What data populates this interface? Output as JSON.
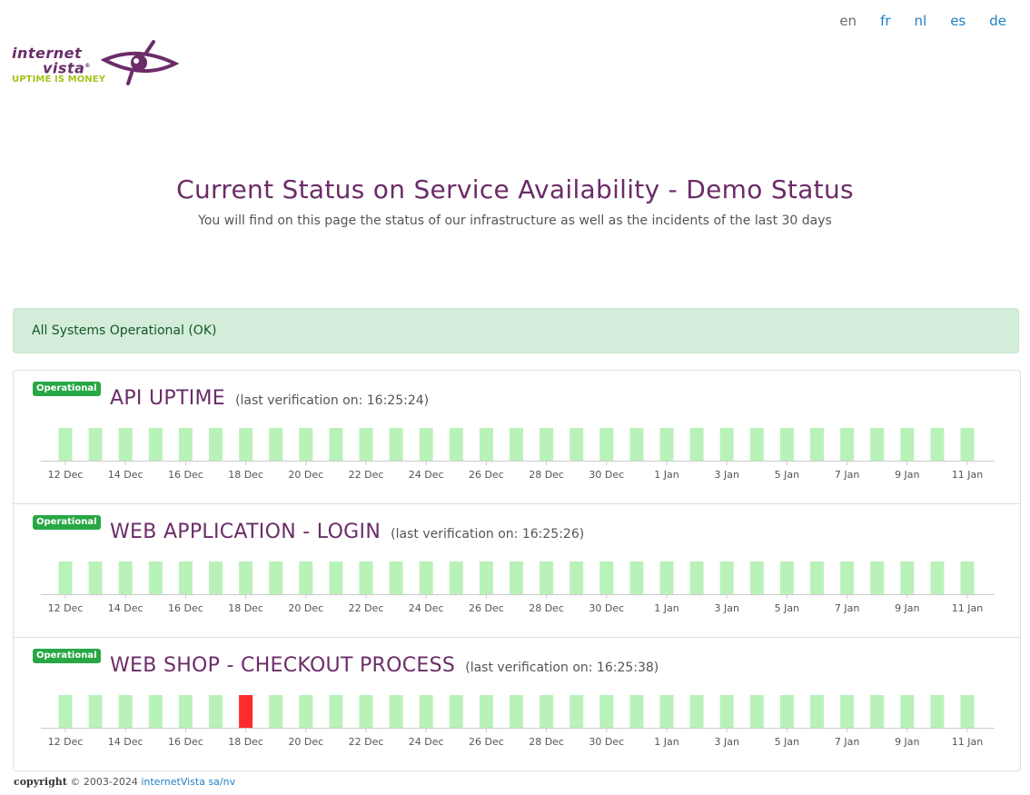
{
  "languages": [
    {
      "code": "en",
      "active": true
    },
    {
      "code": "fr",
      "active": false
    },
    {
      "code": "nl",
      "active": false
    },
    {
      "code": "es",
      "active": false
    },
    {
      "code": "de",
      "active": false
    }
  ],
  "logo": {
    "word_line1": "internet",
    "word_line2": "vista",
    "registered": "®",
    "tagline": "UPTIME IS MONEY"
  },
  "header": {
    "title": "Current Status on Service Availability - Demo Status",
    "subtitle": "You will find on this page the status of our infrastructure as well as the incidents of the last 30 days"
  },
  "alert": {
    "text": "All Systems Operational (OK)"
  },
  "services": [
    {
      "badge": "Operational",
      "name": "API UPTIME",
      "verification": "(last verification on: 16:25:24)"
    },
    {
      "badge": "Operational",
      "name": "WEB APPLICATION - LOGIN",
      "verification": "(last verification on: 16:25:26)"
    },
    {
      "badge": "Operational",
      "name": "WEB SHOP - CHECKOUT PROCESS",
      "verification": "(last verification on: 16:25:38)"
    }
  ],
  "chart_data": [
    {
      "type": "bar",
      "days": [
        "12 Dec",
        "13 Dec",
        "14 Dec",
        "15 Dec",
        "16 Dec",
        "17 Dec",
        "18 Dec",
        "19 Dec",
        "20 Dec",
        "21 Dec",
        "22 Dec",
        "23 Dec",
        "24 Dec",
        "25 Dec",
        "26 Dec",
        "27 Dec",
        "28 Dec",
        "29 Dec",
        "30 Dec",
        "31 Dec",
        "1 Jan",
        "2 Jan",
        "3 Jan",
        "4 Jan",
        "5 Jan",
        "6 Jan",
        "7 Jan",
        "8 Jan",
        "9 Jan",
        "10 Jan",
        "11 Jan"
      ],
      "status": [
        "up",
        "up",
        "up",
        "up",
        "up",
        "up",
        "up",
        "up",
        "up",
        "up",
        "up",
        "up",
        "up",
        "up",
        "up",
        "up",
        "up",
        "up",
        "up",
        "up",
        "up",
        "up",
        "up",
        "up",
        "up",
        "up",
        "up",
        "up",
        "up",
        "up",
        "up"
      ],
      "tick_labels": [
        "12 Dec",
        "14 Dec",
        "16 Dec",
        "18 Dec",
        "20 Dec",
        "22 Dec",
        "24 Dec",
        "26 Dec",
        "28 Dec",
        "30 Dec",
        "1 Jan",
        "3 Jan",
        "5 Jan",
        "7 Jan",
        "9 Jan",
        "11 Jan"
      ]
    },
    {
      "type": "bar",
      "days": [
        "12 Dec",
        "13 Dec",
        "14 Dec",
        "15 Dec",
        "16 Dec",
        "17 Dec",
        "18 Dec",
        "19 Dec",
        "20 Dec",
        "21 Dec",
        "22 Dec",
        "23 Dec",
        "24 Dec",
        "25 Dec",
        "26 Dec",
        "27 Dec",
        "28 Dec",
        "29 Dec",
        "30 Dec",
        "31 Dec",
        "1 Jan",
        "2 Jan",
        "3 Jan",
        "4 Jan",
        "5 Jan",
        "6 Jan",
        "7 Jan",
        "8 Jan",
        "9 Jan",
        "10 Jan",
        "11 Jan"
      ],
      "status": [
        "up",
        "up",
        "up",
        "up",
        "up",
        "up",
        "up",
        "up",
        "up",
        "up",
        "up",
        "up",
        "up",
        "up",
        "up",
        "up",
        "up",
        "up",
        "up",
        "up",
        "up",
        "up",
        "up",
        "up",
        "up",
        "up",
        "up",
        "up",
        "up",
        "up",
        "up"
      ],
      "tick_labels": [
        "12 Dec",
        "14 Dec",
        "16 Dec",
        "18 Dec",
        "20 Dec",
        "22 Dec",
        "24 Dec",
        "26 Dec",
        "28 Dec",
        "30 Dec",
        "1 Jan",
        "3 Jan",
        "5 Jan",
        "7 Jan",
        "9 Jan",
        "11 Jan"
      ]
    },
    {
      "type": "bar",
      "days": [
        "12 Dec",
        "13 Dec",
        "14 Dec",
        "15 Dec",
        "16 Dec",
        "17 Dec",
        "18 Dec",
        "19 Dec",
        "20 Dec",
        "21 Dec",
        "22 Dec",
        "23 Dec",
        "24 Dec",
        "25 Dec",
        "26 Dec",
        "27 Dec",
        "28 Dec",
        "29 Dec",
        "30 Dec",
        "31 Dec",
        "1 Jan",
        "2 Jan",
        "3 Jan",
        "4 Jan",
        "5 Jan",
        "6 Jan",
        "7 Jan",
        "8 Jan",
        "9 Jan",
        "10 Jan",
        "11 Jan"
      ],
      "status": [
        "up",
        "up",
        "up",
        "up",
        "up",
        "up",
        "down",
        "up",
        "up",
        "up",
        "up",
        "up",
        "up",
        "up",
        "up",
        "up",
        "up",
        "up",
        "up",
        "up",
        "up",
        "up",
        "up",
        "up",
        "up",
        "up",
        "up",
        "up",
        "up",
        "up",
        "up"
      ],
      "tick_labels": [
        "12 Dec",
        "14 Dec",
        "16 Dec",
        "18 Dec",
        "20 Dec",
        "22 Dec",
        "24 Dec",
        "26 Dec",
        "28 Dec",
        "30 Dec",
        "1 Jan",
        "3 Jan",
        "5 Jan",
        "7 Jan",
        "9 Jan",
        "11 Jan"
      ]
    }
  ],
  "colors": {
    "up": "#b9f2b8",
    "down": "#ff2a2a",
    "brand": "#6b2c68",
    "badge": "#28a745",
    "link": "#1f7fc7",
    "axis": "#cccccc"
  },
  "footer": {
    "copyright": "copyright",
    "years": "© 2003-2024",
    "company": "internetVista sa/nv"
  }
}
